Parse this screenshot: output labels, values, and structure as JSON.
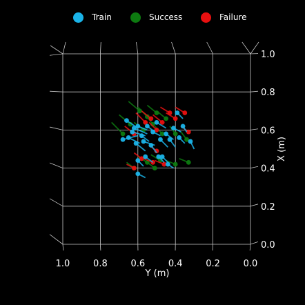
{
  "chart_data": {
    "type": "scatter",
    "projection": "3d-top-view",
    "xlabel": "Y (m)",
    "ylabel": "X (m)",
    "xlim": [
      1.0,
      0.0
    ],
    "ylim": [
      0.0,
      1.0
    ],
    "x_ticks": [
      "1.0",
      "0.8",
      "0.6",
      "0.4",
      "0.2",
      "0.0"
    ],
    "y_ticks": [
      "0.0",
      "0.2",
      "0.4",
      "0.6",
      "0.8",
      "1.0"
    ],
    "grid": true,
    "legend_position": "top",
    "series": [
      {
        "name": "Train",
        "color": "#1ab3e8",
        "points": [
          {
            "x": 0.66,
            "y": 0.65,
            "dx": -0.06,
            "dy": -0.04
          },
          {
            "x": 0.68,
            "y": 0.55,
            "dx": -0.08,
            "dy": 0.02
          },
          {
            "x": 0.65,
            "y": 0.56,
            "dx": -0.06,
            "dy": -0.03
          },
          {
            "x": 0.63,
            "y": 0.59,
            "dx": -0.07,
            "dy": -0.02
          },
          {
            "x": 0.62,
            "y": 0.61,
            "dx": -0.07,
            "dy": -0.03
          },
          {
            "x": 0.6,
            "y": 0.62,
            "dx": -0.05,
            "dy": -0.02
          },
          {
            "x": 0.61,
            "y": 0.53,
            "dx": -0.05,
            "dy": -0.04
          },
          {
            "x": 0.58,
            "y": 0.57,
            "dx": -0.04,
            "dy": -0.03
          },
          {
            "x": 0.57,
            "y": 0.54,
            "dx": -0.06,
            "dy": -0.02
          },
          {
            "x": 0.55,
            "y": 0.62,
            "dx": -0.04,
            "dy": -0.03
          },
          {
            "x": 0.56,
            "y": 0.46,
            "dx": -0.04,
            "dy": -0.03
          },
          {
            "x": 0.53,
            "y": 0.52,
            "dx": -0.03,
            "dy": -0.04
          },
          {
            "x": 0.52,
            "y": 0.59,
            "dx": -0.04,
            "dy": -0.02
          },
          {
            "x": 0.5,
            "y": 0.64,
            "dx": -0.05,
            "dy": -0.03
          },
          {
            "x": 0.49,
            "y": 0.46,
            "dx": -0.03,
            "dy": -0.03
          },
          {
            "x": 0.48,
            "y": 0.55,
            "dx": -0.04,
            "dy": -0.04
          },
          {
            "x": 0.47,
            "y": 0.46,
            "dx": -0.03,
            "dy": -0.03
          },
          {
            "x": 0.45,
            "y": 0.58,
            "dx": -0.04,
            "dy": -0.03
          },
          {
            "x": 0.44,
            "y": 0.42,
            "dx": -0.03,
            "dy": -0.02
          },
          {
            "x": 0.43,
            "y": 0.55,
            "dx": -0.03,
            "dy": -0.04
          },
          {
            "x": 0.41,
            "y": 0.61,
            "dx": -0.04,
            "dy": -0.02
          },
          {
            "x": 0.39,
            "y": 0.69,
            "dx": -0.03,
            "dy": -0.03
          },
          {
            "x": 0.38,
            "y": 0.56,
            "dx": -0.03,
            "dy": -0.03
          },
          {
            "x": 0.36,
            "y": 0.62,
            "dx": -0.02,
            "dy": -0.03
          },
          {
            "x": 0.32,
            "y": 0.54,
            "dx": -0.02,
            "dy": -0.04
          },
          {
            "x": 0.6,
            "y": 0.37,
            "dx": -0.04,
            "dy": -0.02
          },
          {
            "x": 0.6,
            "y": 0.44,
            "dx": -0.03,
            "dy": -0.03
          }
        ]
      },
      {
        "name": "Success",
        "color": "#0d7a10",
        "points": [
          {
            "x": 0.68,
            "y": 0.58,
            "dx": 0.06,
            "dy": 0.06
          },
          {
            "x": 0.64,
            "y": 0.63,
            "dx": 0.06,
            "dy": 0.05
          },
          {
            "x": 0.59,
            "y": 0.7,
            "dx": 0.06,
            "dy": 0.05
          },
          {
            "x": 0.57,
            "y": 0.6,
            "dx": 0.05,
            "dy": 0.04
          },
          {
            "x": 0.55,
            "y": 0.67,
            "dx": 0.05,
            "dy": 0.05
          },
          {
            "x": 0.52,
            "y": 0.63,
            "dx": 0.04,
            "dy": 0.05
          },
          {
            "x": 0.5,
            "y": 0.69,
            "dx": 0.05,
            "dy": 0.04
          },
          {
            "x": 0.47,
            "y": 0.58,
            "dx": 0.04,
            "dy": 0.04
          },
          {
            "x": 0.45,
            "y": 0.66,
            "dx": 0.05,
            "dy": 0.04
          },
          {
            "x": 0.4,
            "y": 0.58,
            "dx": 0.03,
            "dy": 0.04
          },
          {
            "x": 0.34,
            "y": 0.55,
            "dx": 0.03,
            "dy": 0.04
          },
          {
            "x": 0.55,
            "y": 0.43,
            "dx": 0.05,
            "dy": 0.03
          },
          {
            "x": 0.51,
            "y": 0.4,
            "dx": 0.04,
            "dy": 0.03
          },
          {
            "x": 0.48,
            "y": 0.44,
            "dx": 0.05,
            "dy": 0.03
          },
          {
            "x": 0.4,
            "y": 0.42,
            "dx": 0.05,
            "dy": 0.02
          },
          {
            "x": 0.33,
            "y": 0.43,
            "dx": 0.05,
            "dy": 0.02
          },
          {
            "x": 0.62,
            "y": 0.4,
            "dx": 0.04,
            "dy": 0.03
          }
        ]
      },
      {
        "name": "Failure",
        "color": "#e81010",
        "points": [
          {
            "x": 0.62,
            "y": 0.58,
            "dx": 0.05,
            "dy": 0.04
          },
          {
            "x": 0.56,
            "y": 0.64,
            "dx": 0.05,
            "dy": 0.05
          },
          {
            "x": 0.53,
            "y": 0.66,
            "dx": 0.05,
            "dy": 0.04
          },
          {
            "x": 0.5,
            "y": 0.6,
            "dx": 0.04,
            "dy": 0.04
          },
          {
            "x": 0.47,
            "y": 0.64,
            "dx": 0.05,
            "dy": 0.04
          },
          {
            "x": 0.43,
            "y": 0.69,
            "dx": 0.05,
            "dy": 0.03
          },
          {
            "x": 0.4,
            "y": 0.66,
            "dx": 0.05,
            "dy": 0.03
          },
          {
            "x": 0.35,
            "y": 0.69,
            "dx": 0.05,
            "dy": 0.03
          },
          {
            "x": 0.33,
            "y": 0.59,
            "dx": 0.04,
            "dy": 0.03
          },
          {
            "x": 0.5,
            "y": 0.49,
            "dx": 0.04,
            "dy": 0.03
          },
          {
            "x": 0.52,
            "y": 0.43,
            "dx": 0.05,
            "dy": 0.02
          },
          {
            "x": 0.46,
            "y": 0.42,
            "dx": 0.05,
            "dy": 0.02
          },
          {
            "x": 0.62,
            "y": 0.4,
            "dx": 0.04,
            "dy": 0.02
          },
          {
            "x": 0.58,
            "y": 0.45,
            "dx": 0.04,
            "dy": 0.03
          }
        ]
      }
    ]
  }
}
